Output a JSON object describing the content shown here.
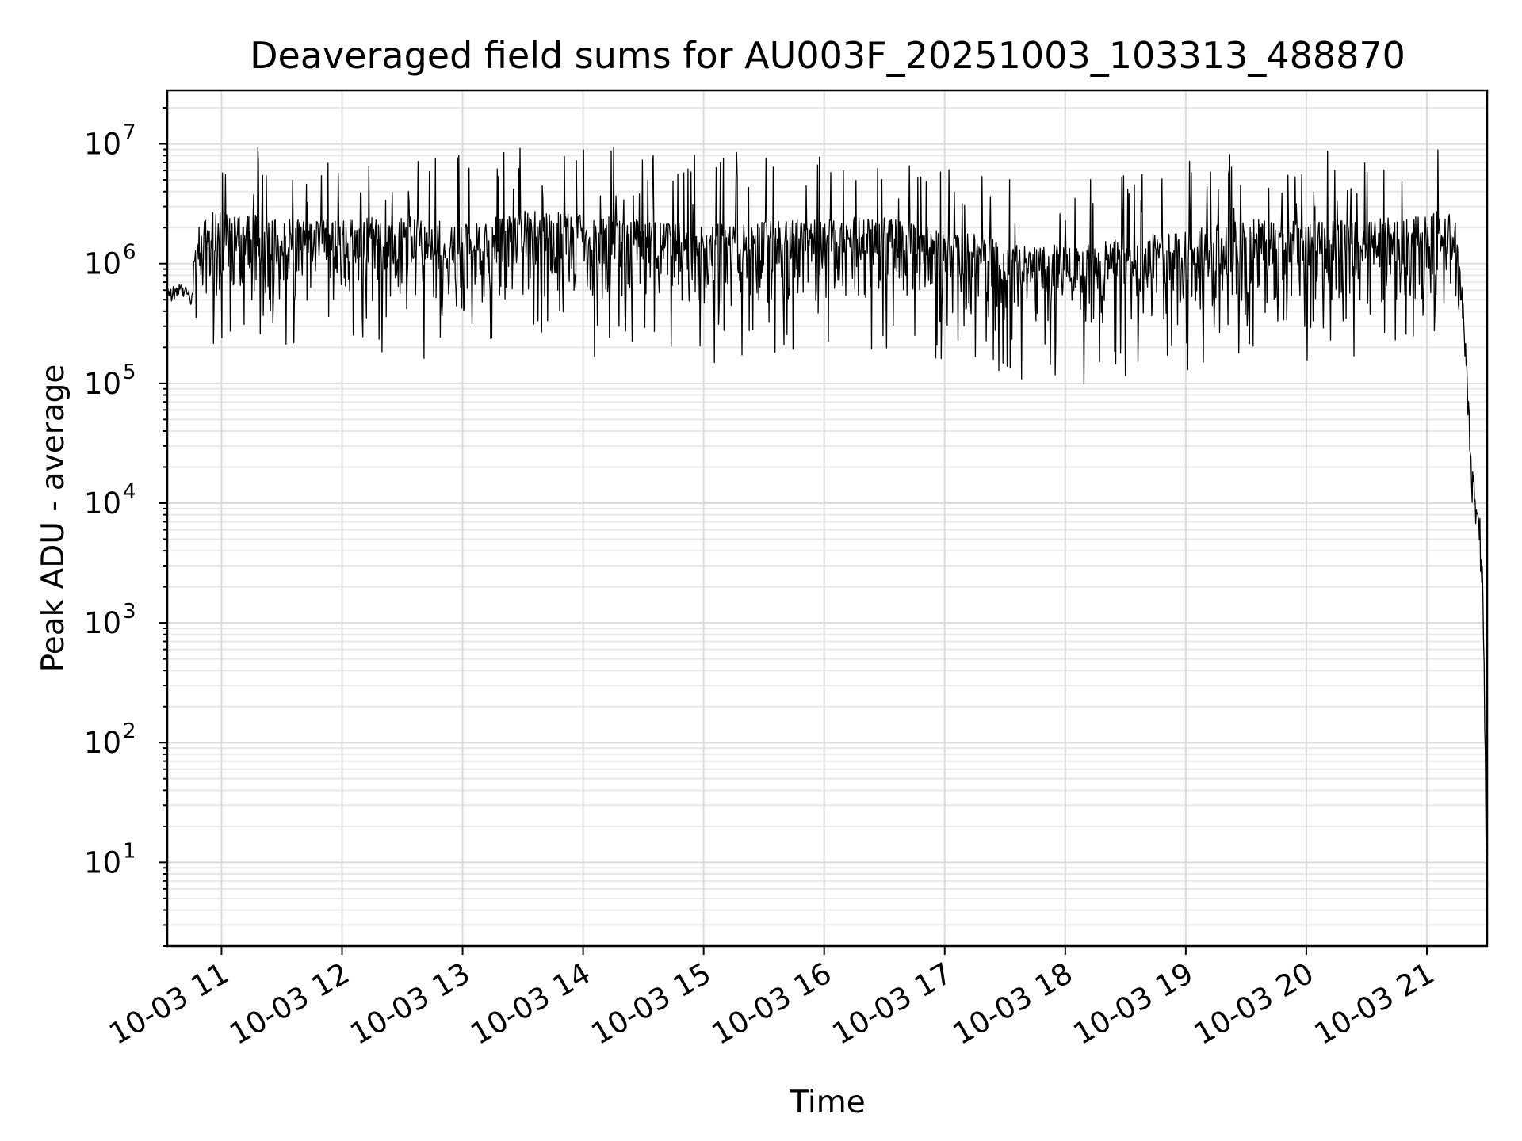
{
  "chart_data": {
    "type": "line",
    "title": "Deaveraged field sums for AU003F_20251003_103313_488870",
    "xlabel": "Time",
    "ylabel": "Peak ADU - average",
    "yscale": "log",
    "grid": "major and minor",
    "x_range": [
      "2025-10-03 10:33",
      "2025-10-03 21:30"
    ],
    "ylim": [
      2,
      28000000
    ],
    "x_tick_labels": [
      "10-03 11",
      "10-03 12",
      "10-03 13",
      "10-03 14",
      "10-03 15",
      "10-03 16",
      "10-03 17",
      "10-03 18",
      "10-03 19",
      "10-03 20",
      "10-03 21"
    ],
    "y_ticks": [
      {
        "value": 10,
        "base": "10",
        "exp": "1"
      },
      {
        "value": 100,
        "base": "10",
        "exp": "2"
      },
      {
        "value": 1000,
        "base": "10",
        "exp": "3"
      },
      {
        "value": 10000,
        "base": "10",
        "exp": "4"
      },
      {
        "value": 100000,
        "base": "10",
        "exp": "5"
      },
      {
        "value": 1000000,
        "base": "10",
        "exp": "6"
      },
      {
        "value": 10000000,
        "base": "10",
        "exp": "7"
      }
    ],
    "series": [
      {
        "color": "#000000",
        "x": [
          "2025-10-03 10:33",
          "2025-10-03 10:40",
          "2025-10-03 10:46",
          "2025-10-03 10:50",
          "2025-10-03 11:00",
          "2025-10-03 11:30",
          "2025-10-03 12:00",
          "2025-10-03 12:30",
          "2025-10-03 13:00",
          "2025-10-03 13:30",
          "2025-10-03 14:00",
          "2025-10-03 14:30",
          "2025-10-03 15:00",
          "2025-10-03 15:30",
          "2025-10-03 16:00",
          "2025-10-03 16:30",
          "2025-10-03 17:00",
          "2025-10-03 17:30",
          "2025-10-03 18:00",
          "2025-10-03 18:30",
          "2025-10-03 19:00",
          "2025-10-03 19:30",
          "2025-10-03 20:00",
          "2025-10-03 20:30",
          "2025-10-03 21:00",
          "2025-10-03 21:14",
          "2025-10-03 21:18",
          "2025-10-03 21:20",
          "2025-10-03 21:22",
          "2025-10-03 21:24",
          "2025-10-03 21:26",
          "2025-10-03 21:28",
          "2025-10-03 21:30"
        ],
        "y": [
          550000,
          600000,
          500000,
          1100000,
          1200000,
          1000000,
          1000000,
          1100000,
          900000,
          1200000,
          1100000,
          1000000,
          900000,
          1000000,
          1000000,
          1100000,
          800000,
          700000,
          600000,
          700000,
          800000,
          1000000,
          1000000,
          1000000,
          1100000,
          1300000,
          500000,
          100000,
          20000,
          10000,
          7000,
          2000,
          4
        ]
      }
    ]
  }
}
